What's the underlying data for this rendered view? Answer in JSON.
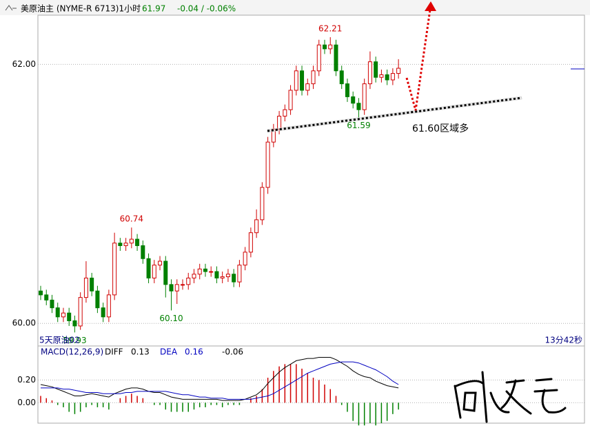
{
  "header": {
    "symbol": "美原油主 (NYME-R 6713)1小时",
    "last": "61.97",
    "change": "-0.04 / -0.06%"
  },
  "chart_data": [
    {
      "type": "candlestick",
      "open": [
        60.25,
        60.22,
        60.18,
        60.12,
        60.05,
        60.08,
        60.02,
        59.98,
        60.2,
        60.35,
        60.25,
        60.12,
        60.05,
        60.22,
        60.62,
        60.6,
        60.62,
        60.65,
        60.6,
        60.5,
        60.35,
        60.45,
        60.48,
        60.3,
        60.25,
        60.3,
        60.3,
        60.35,
        60.38,
        60.42,
        60.4,
        60.4,
        60.35,
        60.36,
        60.38,
        60.32,
        60.45,
        60.55,
        60.7,
        60.8,
        61.05,
        61.4,
        61.5,
        61.6,
        61.65,
        61.8,
        61.95,
        61.8,
        61.85,
        61.95,
        62.15,
        62.12,
        62.15,
        61.95,
        61.85,
        61.75,
        61.7,
        61.65,
        61.85,
        62.02,
        61.9,
        61.92,
        61.88,
        61.93
      ],
      "high": [
        60.29,
        60.26,
        60.22,
        60.16,
        60.12,
        60.12,
        60.06,
        60.24,
        60.48,
        60.39,
        60.29,
        60.16,
        60.26,
        60.7,
        60.66,
        60.66,
        60.74,
        60.69,
        60.64,
        60.54,
        60.49,
        60.52,
        60.52,
        60.34,
        60.34,
        60.34,
        60.39,
        60.42,
        60.46,
        60.46,
        60.44,
        60.44,
        60.4,
        60.42,
        60.42,
        60.49,
        60.59,
        60.74,
        60.88,
        61.09,
        61.44,
        61.54,
        61.64,
        61.69,
        61.84,
        61.99,
        61.99,
        61.89,
        61.99,
        62.19,
        62.19,
        62.21,
        62.19,
        61.99,
        61.89,
        61.79,
        61.74,
        61.89,
        62.1,
        62.06,
        61.96,
        61.96,
        61.97,
        62.04
      ],
      "low": [
        60.18,
        60.14,
        60.08,
        60.01,
        60.01,
        59.98,
        59.93,
        59.95,
        60.16,
        60.21,
        60.08,
        60.01,
        60.01,
        60.18,
        60.56,
        60.56,
        60.58,
        60.56,
        60.46,
        60.31,
        60.31,
        60.41,
        60.2,
        60.1,
        60.15,
        60.26,
        60.26,
        60.31,
        60.34,
        60.36,
        60.36,
        60.31,
        60.31,
        60.32,
        60.28,
        60.28,
        60.41,
        60.51,
        60.66,
        60.76,
        61.0,
        61.36,
        61.46,
        61.56,
        61.61,
        61.76,
        61.76,
        61.76,
        61.81,
        61.91,
        62.08,
        62.08,
        61.91,
        61.81,
        61.71,
        61.66,
        61.59,
        61.61,
        61.81,
        61.86,
        61.86,
        61.84,
        61.84,
        61.89
      ],
      "close": [
        60.22,
        60.18,
        60.12,
        60.05,
        60.08,
        60.02,
        59.98,
        60.2,
        60.35,
        60.25,
        60.12,
        60.05,
        60.22,
        60.62,
        60.6,
        60.62,
        60.65,
        60.6,
        60.5,
        60.35,
        60.45,
        60.48,
        60.3,
        60.25,
        60.3,
        60.3,
        60.35,
        60.38,
        60.42,
        60.4,
        60.4,
        60.35,
        60.36,
        60.38,
        60.32,
        60.45,
        60.55,
        60.7,
        60.8,
        61.05,
        61.4,
        61.5,
        61.6,
        61.65,
        61.8,
        61.95,
        61.8,
        61.85,
        61.95,
        62.15,
        62.12,
        62.15,
        61.95,
        61.85,
        61.75,
        61.7,
        61.65,
        61.85,
        62.02,
        61.9,
        61.92,
        61.88,
        61.93,
        61.97
      ],
      "up_color": "#d00000",
      "down_color": "#008000",
      "ylim": [
        59.9,
        62.38
      ],
      "yticks": [
        {
          "value": 60,
          "label": "60.00"
        },
        {
          "value": 62,
          "label": "62.00"
        }
      ],
      "extremes": [
        {
          "value": 62.21,
          "label": "62.21"
        },
        {
          "value": 61.59,
          "label": "61.59"
        },
        {
          "value": 60.74,
          "label": "60.74"
        },
        {
          "value": 60.1,
          "label": "60.10"
        },
        {
          "value": 59.93,
          "label": "59.93"
        }
      ],
      "annotation": "61.60区域多",
      "footer_left": "5天原油02",
      "footer_right": "13分42秒"
    },
    {
      "type": "macd",
      "title": "MACD(12,26,9)",
      "series": [
        {
          "name": "DIFF",
          "color": "#000000",
          "values": [
            0.16,
            0.15,
            0.14,
            0.12,
            0.1,
            0.08,
            0.06,
            0.06,
            0.07,
            0.08,
            0.07,
            0.06,
            0.05,
            0.08,
            0.1,
            0.12,
            0.13,
            0.13,
            0.12,
            0.1,
            0.09,
            0.09,
            0.07,
            0.05,
            0.04,
            0.03,
            0.03,
            0.03,
            0.03,
            0.03,
            0.03,
            0.03,
            0.02,
            0.02,
            0.02,
            0.02,
            0.03,
            0.05,
            0.07,
            0.11,
            0.17,
            0.22,
            0.27,
            0.31,
            0.34,
            0.37,
            0.38,
            0.39,
            0.39,
            0.4,
            0.4,
            0.4,
            0.38,
            0.35,
            0.32,
            0.28,
            0.25,
            0.23,
            0.22,
            0.19,
            0.17,
            0.15,
            0.14,
            0.13
          ]
        },
        {
          "name": "DEA",
          "color": "#0000c0",
          "values": [
            0.13,
            0.13,
            0.13,
            0.13,
            0.12,
            0.12,
            0.11,
            0.1,
            0.09,
            0.09,
            0.09,
            0.08,
            0.08,
            0.08,
            0.08,
            0.09,
            0.09,
            0.1,
            0.1,
            0.1,
            0.1,
            0.1,
            0.1,
            0.09,
            0.08,
            0.07,
            0.07,
            0.06,
            0.05,
            0.05,
            0.04,
            0.04,
            0.04,
            0.03,
            0.03,
            0.03,
            0.03,
            0.03,
            0.04,
            0.05,
            0.06,
            0.08,
            0.11,
            0.14,
            0.17,
            0.2,
            0.23,
            0.26,
            0.28,
            0.3,
            0.32,
            0.34,
            0.35,
            0.36,
            0.36,
            0.36,
            0.35,
            0.33,
            0.31,
            0.29,
            0.26,
            0.23,
            0.19,
            0.16
          ]
        }
      ],
      "histogram": [
        0.06,
        0.04,
        0.02,
        -0.02,
        -0.04,
        -0.08,
        -0.1,
        -0.08,
        -0.04,
        -0.02,
        -0.04,
        -0.04,
        -0.06,
        0,
        0.04,
        0.06,
        0.08,
        0.06,
        0.04,
        0,
        -0.02,
        -0.02,
        -0.06,
        -0.08,
        -0.08,
        -0.08,
        -0.08,
        -0.06,
        -0.04,
        -0.04,
        -0.02,
        -0.02,
        -0.04,
        -0.02,
        -0.02,
        -0.02,
        0,
        0.04,
        0.06,
        0.12,
        0.22,
        0.28,
        0.32,
        0.34,
        0.34,
        0.34,
        0.3,
        0.26,
        0.22,
        0.2,
        0.16,
        0.12,
        0.06,
        -0.02,
        -0.08,
        -0.16,
        -0.2,
        -0.2,
        -0.18,
        -0.2,
        -0.18,
        -0.16,
        -0.1,
        -0.06
      ],
      "histogram_colors": [
        "#d00000",
        "#008000"
      ],
      "readouts": [
        "0.13",
        "0.16",
        "-0.06"
      ],
      "ylim": [
        -0.18,
        0.5
      ],
      "yticks": [
        {
          "value": 0,
          "label": "0.00"
        },
        {
          "value": 0.2,
          "label": "0.20"
        }
      ]
    }
  ]
}
